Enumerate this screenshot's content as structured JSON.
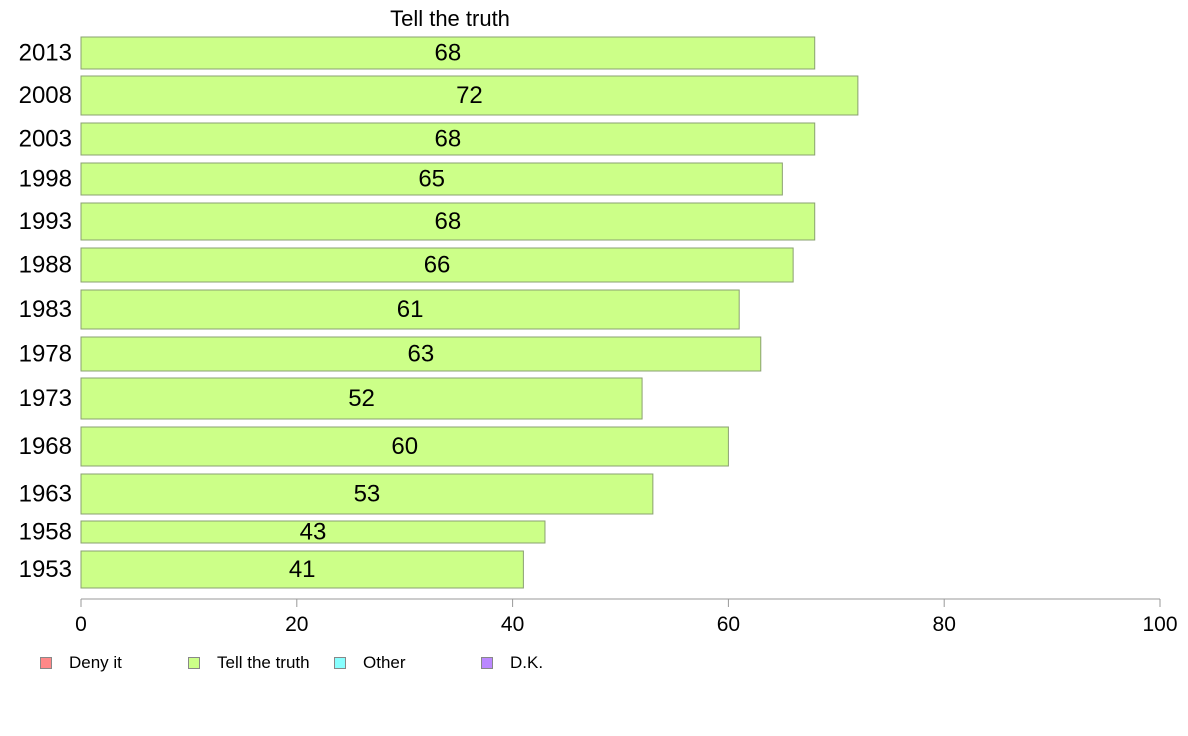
{
  "chart_data": {
    "type": "bar",
    "orientation": "horizontal",
    "title": "Tell the truth",
    "xlabel": "",
    "ylabel": "",
    "categories": [
      "2013",
      "2008",
      "2003",
      "1998",
      "1993",
      "1988",
      "1983",
      "1978",
      "1973",
      "1968",
      "1963",
      "1958",
      "1953"
    ],
    "series": [
      {
        "name": "Tell the truth",
        "values": [
          68,
          72,
          68,
          65,
          68,
          66,
          61,
          63,
          52,
          60,
          53,
          43,
          41
        ]
      }
    ],
    "xlim": [
      0,
      100
    ],
    "xticks": [
      0,
      20,
      40,
      60,
      80,
      100
    ],
    "grid": false,
    "legend_position": "bottom-left",
    "bar_color": "#ccff88",
    "bar_edge_color": "#8aa070"
  },
  "legend": [
    {
      "label": "Deny it",
      "color": "#ff8888"
    },
    {
      "label": "Tell the truth",
      "color": "#ccff88"
    },
    {
      "label": "Other",
      "color": "#88ffff"
    },
    {
      "label": "D.K.",
      "color": "#bb88ff"
    }
  ]
}
